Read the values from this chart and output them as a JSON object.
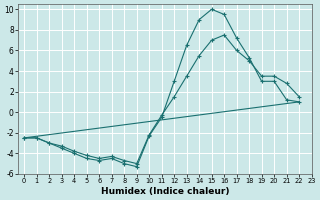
{
  "xlabel": "Humidex (Indice chaleur)",
  "bg_color": "#cce8e8",
  "grid_color": "#ffffff",
  "line_color": "#1a7070",
  "xlim": [
    -0.5,
    23
  ],
  "ylim": [
    -6,
    10.5
  ],
  "xticks": [
    0,
    1,
    2,
    3,
    4,
    5,
    6,
    7,
    8,
    9,
    10,
    11,
    12,
    13,
    14,
    15,
    16,
    17,
    18,
    19,
    20,
    21,
    22,
    23
  ],
  "yticks": [
    -6,
    -4,
    -2,
    0,
    2,
    4,
    6,
    8,
    10
  ],
  "series": [
    {
      "x": [
        0,
        1,
        2,
        3,
        4,
        5,
        6,
        7,
        8,
        9,
        10,
        11,
        12,
        13,
        14,
        15,
        16,
        17,
        18,
        19,
        20,
        21,
        22
      ],
      "y": [
        -2.5,
        -2.5,
        -3.0,
        -3.5,
        -4.0,
        -4.5,
        -4.7,
        -4.5,
        -5.0,
        -5.3,
        -2.3,
        -0.5,
        3.0,
        6.5,
        9.0,
        10.0,
        9.5,
        7.2,
        5.3,
        3.0,
        3.0,
        1.2,
        1.0
      ],
      "marker": "+"
    },
    {
      "x": [
        0,
        1,
        2,
        3,
        4,
        5,
        6,
        7,
        8,
        9,
        10,
        11,
        12,
        13,
        14,
        15,
        16,
        17,
        18,
        19,
        20,
        21,
        22
      ],
      "y": [
        -2.5,
        -2.5,
        -3.0,
        -3.3,
        -3.8,
        -4.2,
        -4.5,
        -4.3,
        -4.7,
        -5.0,
        -2.2,
        -0.3,
        1.5,
        3.5,
        5.5,
        7.0,
        7.5,
        6.0,
        5.0,
        3.5,
        3.5,
        2.8,
        1.5
      ],
      "marker": "+"
    },
    {
      "x": [
        0,
        22
      ],
      "y": [
        -2.5,
        1.0
      ],
      "marker": null
    }
  ]
}
